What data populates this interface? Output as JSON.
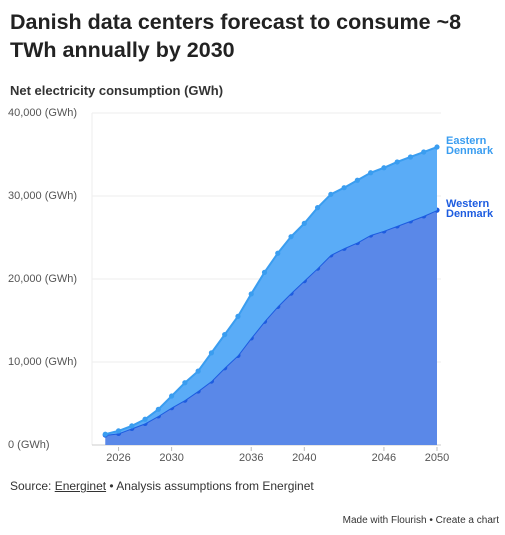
{
  "chart_data": {
    "type": "stacked-area",
    "title": "Danish data centers forecast to consume ~8 TWh annually by 2030",
    "subtitle": "Net electricity consumption (GWh)",
    "x": [
      2025,
      2026,
      2027,
      2028,
      2029,
      2030,
      2031,
      2032,
      2033,
      2034,
      2035,
      2036,
      2037,
      2038,
      2039,
      2040,
      2041,
      2042,
      2043,
      2044,
      2045,
      2046,
      2047,
      2048,
      2049,
      2050
    ],
    "series": [
      {
        "name": "Western Denmark",
        "color": "#1d5ce0",
        "fill": "#5a88e8",
        "values": [
          1200,
          1400,
          2000,
          2600,
          3500,
          4500,
          5400,
          6500,
          7700,
          9300,
          10800,
          12900,
          14900,
          16700,
          18300,
          19800,
          21300,
          22900,
          23700,
          24400,
          25300,
          25800,
          26400,
          27000,
          27600,
          28300
        ]
      },
      {
        "name": "Eastern Denmark",
        "color": "#3a9df0",
        "fill": "#5aacf7",
        "values": [
          100,
          300,
          300,
          500,
          800,
          1400,
          2100,
          2400,
          3400,
          4000,
          4700,
          5300,
          5900,
          6400,
          6800,
          6900,
          7300,
          7300,
          7300,
          7500,
          7500,
          7600,
          7700,
          7700,
          7700,
          7600
        ]
      }
    ],
    "xlim": [
      2024,
      2050
    ],
    "xticks": [
      2026,
      2030,
      2036,
      2040,
      2046,
      2050
    ],
    "ylim": [
      0,
      40000
    ],
    "yticks": [
      {
        "value": 0,
        "label": "0 (GWh)"
      },
      {
        "value": 10000,
        "label": "10,000 (GWh)"
      },
      {
        "value": 20000,
        "label": "20,000 (GWh)"
      },
      {
        "value": 30000,
        "label": "30,000 (GWh)"
      },
      {
        "value": 40000,
        "label": "40,000 (GWh)"
      }
    ],
    "grid": true,
    "source": {
      "label": "Source:",
      "link": "Energinet",
      "note": "• Analysis assumptions from Energinet"
    }
  },
  "footer": {
    "credit": "Made with Flourish",
    "separator": "•",
    "cta": "Create a chart"
  }
}
